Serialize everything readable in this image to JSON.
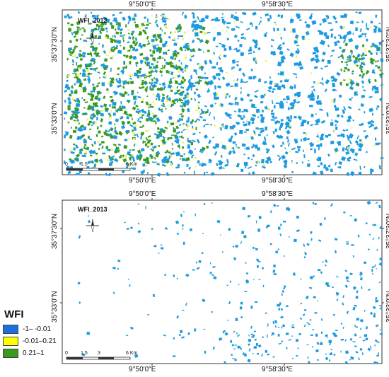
{
  "maps": [
    {
      "title": "WFI_2012",
      "lon_labels": [
        "9°50'0\"E",
        "9°58'30\"E"
      ],
      "lat_labels": [
        "35°37'30\"N",
        "35°33'0\"N"
      ],
      "scale_labels": [
        "0",
        "1.5",
        "6 Km"
      ],
      "colors": {
        "blue": "#1e9be0",
        "yellow": "#f3f04a",
        "green": "#3a9a1c"
      }
    },
    {
      "title": "WFI_2013",
      "lon_labels": [
        "9°50'0\"E",
        "9°58'30\"E"
      ],
      "lat_labels": [
        "35°37'30\"N",
        "35°33'0\"N"
      ],
      "scale_labels": [
        "0",
        "1.5",
        "3",
        "6 Km"
      ],
      "colors": {
        "blue": "#1e9be0"
      }
    }
  ],
  "legend": {
    "title": "WFI",
    "items": [
      {
        "label": "-1– -0.01",
        "color": "#1b6fe0"
      },
      {
        "label": "-0.01–0.21",
        "color": "#ffff00"
      },
      {
        "label": "0.21–1",
        "color": "#3a9a1c"
      }
    ]
  }
}
